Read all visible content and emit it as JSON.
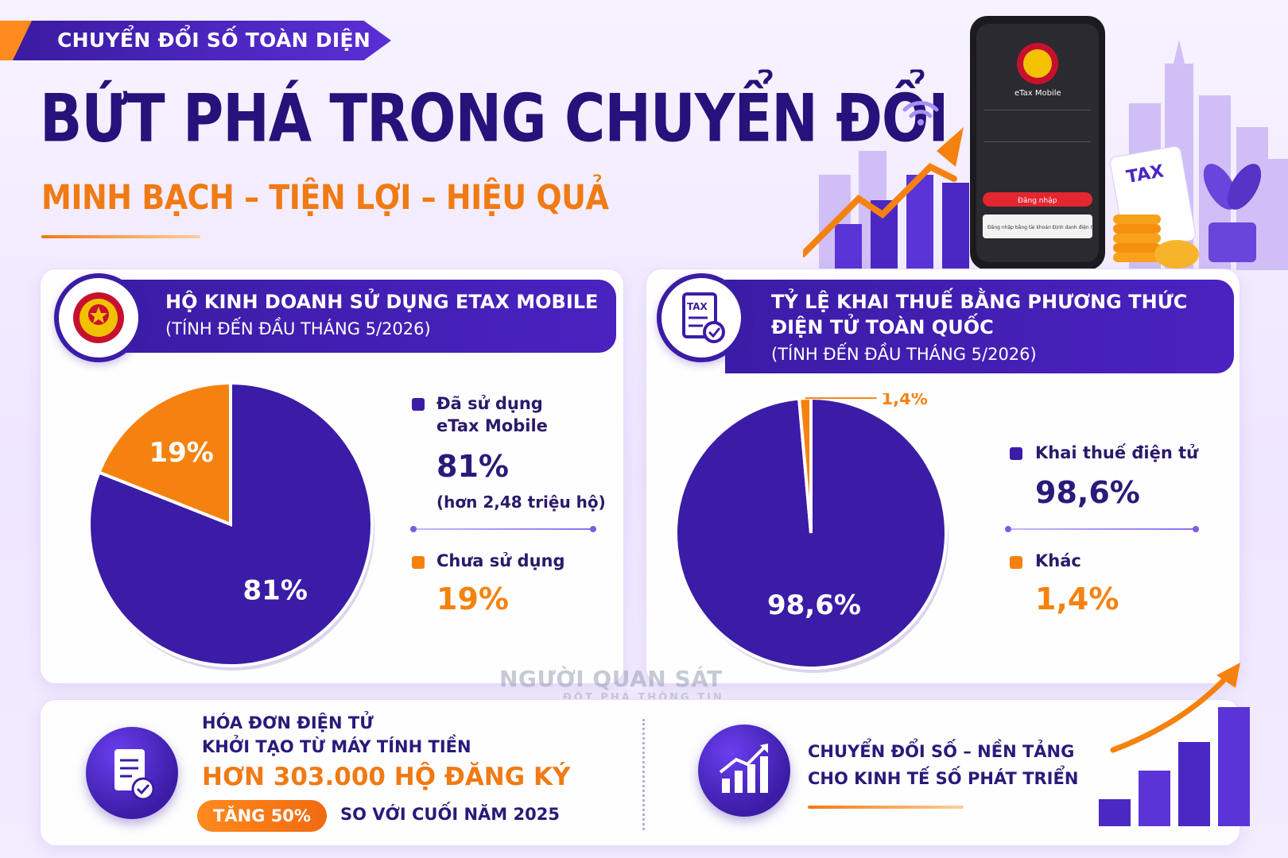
{
  "banner": {
    "tag": "CHUYỂN ĐỔI SỐ TOÀN DIỆN"
  },
  "header": {
    "title": "BỨT PHÁ TRONG CHUYỂN ĐỔI SỐ",
    "subtitle": "MINH BẠCH – TIỆN LỢI – HIỆU QUẢ"
  },
  "hero": {
    "app_name": "eTax Mobile",
    "login_button": "Đăng nhập",
    "login_alt": "Đăng nhập bằng tài khoản Định danh điện tử",
    "tax_label": "TAX"
  },
  "colors": {
    "primary": "#3b1ca6",
    "accent": "#f5820f",
    "navy": "#26127a"
  },
  "chart_data": [
    {
      "type": "pie",
      "title": "HỘ KINH DOANH SỬ DỤNG ETAX MOBILE",
      "note": "(TÍNH ĐẾN ĐẦU THÁNG 5/2026)",
      "icon": "emblem-icon",
      "slices": [
        {
          "label": "Đã sử dụng eTax Mobile",
          "label_line1": "Đã sử dụng",
          "label_line2": "eTax Mobile",
          "value": 81,
          "display": "81%",
          "note": "(hơn 2,48 triệu hộ)",
          "color": "#3b1ca6"
        },
        {
          "label": "Chưa sử dụng",
          "value": 19,
          "display": "19%",
          "color": "#f5820f"
        }
      ]
    },
    {
      "type": "pie",
      "title_line1": "TỶ LỆ KHAI THUẾ BẰNG PHƯƠNG THỨC",
      "title_line2": "ĐIỆN TỬ TOÀN QUỐC",
      "note": "(TÍNH ĐẾN ĐẦU THÁNG 5/2026)",
      "icon": "tax-document-icon",
      "slices": [
        {
          "label": "Khai thuế điện tử",
          "value": 98.6,
          "display": "98,6%",
          "color": "#3b1ca6"
        },
        {
          "label": "Khác",
          "value": 1.4,
          "display": "1,4%",
          "color": "#f5820f"
        }
      ]
    }
  ],
  "bottom": {
    "invoice": {
      "line1": "HÓA ĐƠN ĐIỆN TỬ",
      "line2": "KHỞI TẠO TỪ MÁY TÍNH TIỀN",
      "highlight": "HƠN 303.000 HỘ ĐĂNG KÝ",
      "badge": "TĂNG 50%",
      "compare": "SO VỚI CUỐI NĂM 2025"
    },
    "slogan": {
      "line1": "CHUYỂN ĐỔI SỐ – NỀN TẢNG",
      "line2": "CHO KINH TẾ SỐ PHÁT TRIỂN"
    }
  },
  "watermark": {
    "name": "NGƯỜI QUAN SÁT",
    "tagline": "ĐỘT PHÁ THÔNG TIN"
  }
}
